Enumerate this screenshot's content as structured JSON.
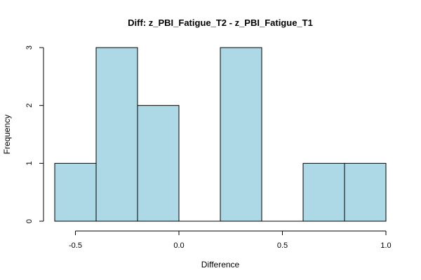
{
  "chart_data": {
    "type": "bar",
    "title": "Diff: z_PBI_Fatigue_T2 - z_PBI_Fatigue_T1",
    "xlabel": "Difference",
    "ylabel": "Frequency",
    "bins": [
      {
        "x0": -0.6,
        "x1": -0.4,
        "count": 1
      },
      {
        "x0": -0.4,
        "x1": -0.2,
        "count": 3
      },
      {
        "x0": -0.2,
        "x1": 0.0,
        "count": 2
      },
      {
        "x0": 0.0,
        "x1": 0.2,
        "count": 0
      },
      {
        "x0": 0.2,
        "x1": 0.4,
        "count": 3
      },
      {
        "x0": 0.4,
        "x1": 0.6,
        "count": 0
      },
      {
        "x0": 0.6,
        "x1": 0.8,
        "count": 1
      },
      {
        "x0": 0.8,
        "x1": 1.0,
        "count": 1
      }
    ],
    "xticks": [
      -0.5,
      0.0,
      0.5,
      1.0
    ],
    "xtick_labels": [
      "-0.5",
      "0.0",
      "0.5",
      "1.0"
    ],
    "yticks": [
      0,
      1,
      2,
      3
    ],
    "yticks_labels": [
      "0",
      "1",
      "2",
      "3"
    ],
    "xlim": [
      -0.6,
      1.0
    ],
    "ylim": [
      0,
      3
    ],
    "bar_color": "#add8e6",
    "grid": false,
    "legend": "none"
  }
}
